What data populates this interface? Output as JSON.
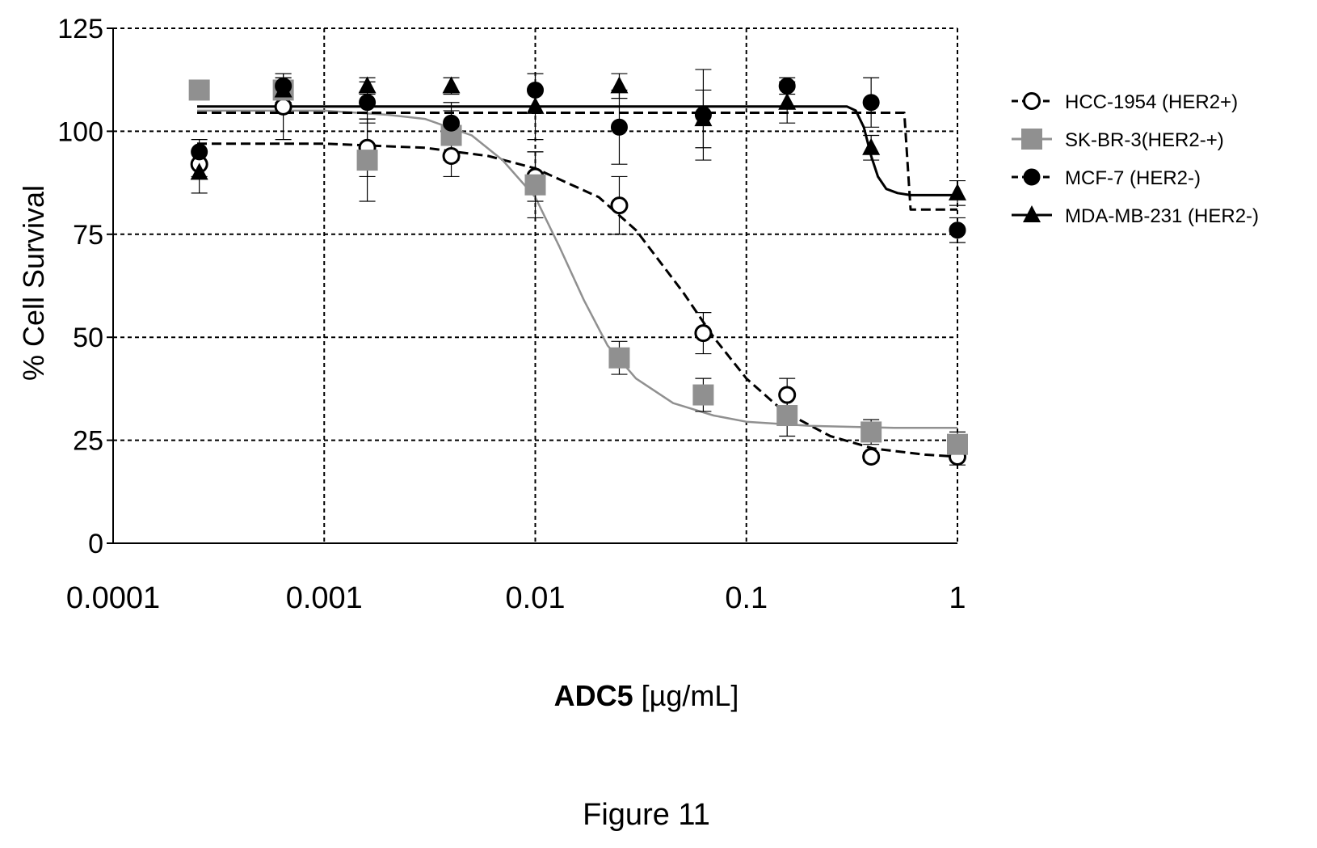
{
  "chart_data": {
    "type": "scatter",
    "title": "",
    "xlabel_bold": "ADC5",
    "xlabel_unit": " [µg/mL]",
    "ylabel": "% Cell Survival",
    "x_scale": "log",
    "xlim": [
      0.0001,
      1
    ],
    "ylim": [
      0,
      125
    ],
    "x_ticks": [
      0.0001,
      0.001,
      0.01,
      0.1,
      1
    ],
    "x_tick_labels": [
      "0.0001",
      "0.001",
      "0.01",
      "0.1",
      "1"
    ],
    "y_ticks": [
      0,
      25,
      50,
      75,
      100,
      125
    ],
    "y_tick_labels": [
      "0",
      "25",
      "50",
      "75",
      "100",
      "125"
    ],
    "grid": true,
    "legend_position": "right",
    "series": [
      {
        "name": "HCC-1954 (HER2+)",
        "marker": "open-circle",
        "color": "#000000",
        "line_style": "dashed",
        "x": [
          0.000256,
          0.00064,
          0.0016,
          0.004,
          0.01,
          0.025,
          0.0625,
          0.156,
          0.39,
          1.0
        ],
        "y": [
          92,
          106,
          96,
          94,
          89,
          82,
          51,
          36,
          21,
          21
        ],
        "error": [
          3,
          8,
          7,
          5,
          6,
          7,
          5,
          4,
          1,
          2
        ],
        "fit_x": [
          0.00025,
          0.001,
          0.003,
          0.006,
          0.01,
          0.02,
          0.03,
          0.05,
          0.07,
          0.1,
          0.15,
          0.25,
          0.4,
          0.7,
          1.0
        ],
        "fit_y": [
          97,
          97,
          96,
          94,
          91,
          84,
          76,
          61,
          50,
          40,
          32,
          26,
          23,
          21.5,
          21
        ]
      },
      {
        "name": "SK-BR-3(HER2-+)",
        "marker": "square",
        "color": "#909090",
        "line_style": "solid",
        "x": [
          0.000256,
          0.00064,
          0.0016,
          0.004,
          0.01,
          0.025,
          0.0625,
          0.156,
          0.39,
          1.0
        ],
        "y": [
          110,
          110,
          93,
          99,
          87,
          45,
          36,
          31,
          27,
          24
        ],
        "error": [
          0,
          3,
          10,
          6,
          8,
          4,
          4,
          5,
          3,
          3
        ],
        "fit_x": [
          0.00025,
          0.001,
          0.002,
          0.003,
          0.005,
          0.007,
          0.01,
          0.013,
          0.017,
          0.022,
          0.03,
          0.045,
          0.07,
          0.1,
          0.2,
          0.5,
          1.0
        ],
        "fit_y": [
          105,
          105,
          104,
          103,
          99,
          93,
          84,
          72,
          59,
          48,
          40,
          34,
          31,
          29.5,
          28.5,
          28,
          28
        ]
      },
      {
        "name": "MCF-7 (HER2-)",
        "marker": "filled-circle",
        "color": "#000000",
        "line_style": "dashed",
        "x": [
          0.000256,
          0.00064,
          0.0016,
          0.004,
          0.01,
          0.025,
          0.0625,
          0.156,
          0.39,
          1.0
        ],
        "y": [
          95,
          111,
          107,
          102,
          110,
          101,
          104,
          111,
          107,
          76
        ],
        "error": [
          3,
          3,
          5,
          5,
          4,
          9,
          11,
          2,
          6,
          3
        ],
        "fit_x": [
          0.00025,
          0.1,
          0.3,
          0.5,
          0.56,
          0.6,
          0.7,
          1.0
        ],
        "fit_y": [
          104.5,
          104.5,
          104.5,
          104.5,
          104.5,
          81,
          81,
          81
        ]
      },
      {
        "name": "MDA-MB-231 (HER2-)",
        "marker": "triangle",
        "color": "#000000",
        "line_style": "solid",
        "x": [
          0.000256,
          0.00064,
          0.0016,
          0.004,
          0.01,
          0.025,
          0.0625,
          0.156,
          0.39,
          1.0
        ],
        "y": [
          90,
          110,
          111,
          111,
          106,
          111,
          103,
          107,
          96,
          85
        ],
        "error": [
          5,
          3,
          2,
          2,
          8,
          3,
          7,
          5,
          3,
          3
        ],
        "fit_x": [
          0.00025,
          0.1,
          0.3,
          0.33,
          0.36,
          0.39,
          0.42,
          0.46,
          0.52,
          0.6,
          0.7,
          1.0
        ],
        "fit_y": [
          106,
          106,
          106,
          105,
          101,
          94,
          89,
          86,
          85,
          84.5,
          84.5,
          84.5
        ]
      }
    ]
  },
  "caption": "Figure 11"
}
